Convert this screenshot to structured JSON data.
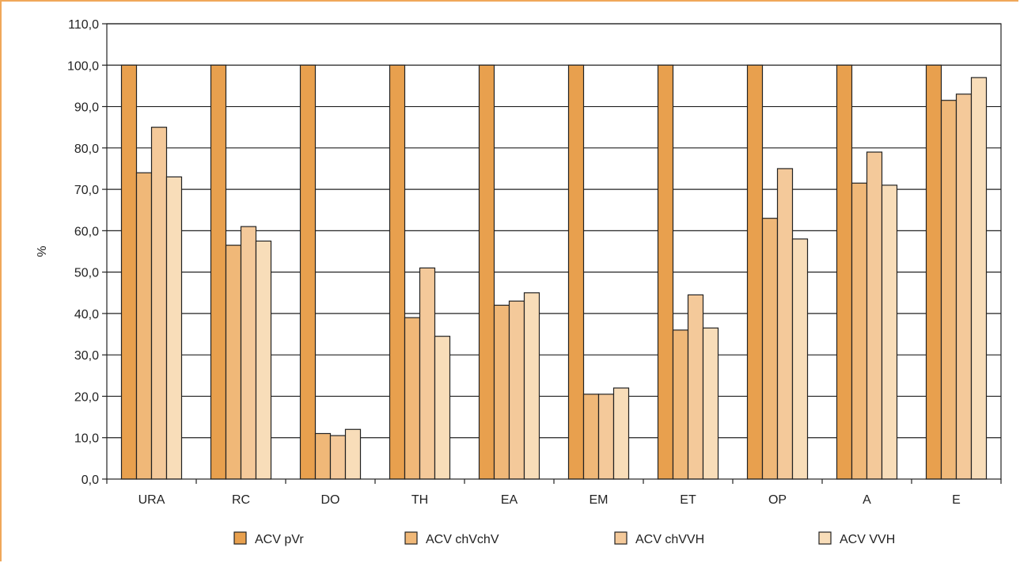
{
  "chart_data": {
    "type": "bar",
    "title": "",
    "xlabel": "",
    "ylabel": "%",
    "ylim": [
      0,
      110
    ],
    "ytick_step": 10,
    "ytick_labels": [
      "0,0",
      "10,0",
      "20,0",
      "30,0",
      "40,0",
      "50,0",
      "60,0",
      "70,0",
      "80,0",
      "90,0",
      "100,0",
      "110,0"
    ],
    "grid": true,
    "legend_position": "bottom",
    "categories": [
      "URA",
      "RC",
      "DO",
      "TH",
      "EA",
      "EM",
      "ET",
      "OP",
      "A",
      "E"
    ],
    "series": [
      {
        "name": "ACV pVr",
        "color": "#E8A04E",
        "values": [
          100,
          100,
          100,
          100,
          100,
          100,
          100,
          100,
          100,
          100
        ]
      },
      {
        "name": "ACV chVchV",
        "color": "#F0B878",
        "values": [
          74,
          56.5,
          11,
          39,
          42,
          20.5,
          36,
          63,
          71.5,
          91.5
        ]
      },
      {
        "name": "ACV chVVH",
        "color": "#F4C99A",
        "values": [
          85,
          61,
          10.5,
          51,
          43,
          20.5,
          44.5,
          75,
          79,
          93
        ]
      },
      {
        "name": "ACV VVH",
        "color": "#F8DDB9",
        "values": [
          73,
          57.5,
          12,
          34.5,
          45,
          22,
          36.5,
          58,
          71,
          97
        ]
      }
    ]
  }
}
